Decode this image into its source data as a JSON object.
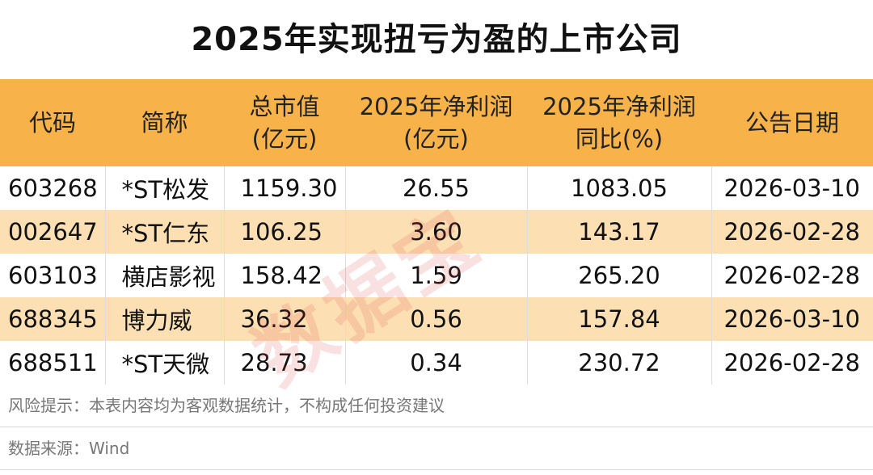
{
  "title": "2025年实现扭亏为盈的上市公司",
  "table": {
    "headers": [
      {
        "line1": "代码",
        "line2": ""
      },
      {
        "line1": "简称",
        "line2": ""
      },
      {
        "line1": "总市值",
        "line2": "(亿元)"
      },
      {
        "line1": "2025年净利润",
        "line2": "(亿元)"
      },
      {
        "line1": "2025年净利润",
        "line2": "同比(%)"
      },
      {
        "line1": "公告日期",
        "line2": ""
      }
    ],
    "rows": [
      {
        "code": "603268",
        "name": "*ST松发",
        "market_cap": "1159.30",
        "net_profit": "26.55",
        "yoy": "1083.05",
        "date": "2026-03-10"
      },
      {
        "code": "002647",
        "name": "*ST仁东",
        "market_cap": "106.25",
        "net_profit": "3.60",
        "yoy": "143.17",
        "date": "2026-02-28"
      },
      {
        "code": "603103",
        "name": "横店影视",
        "market_cap": "158.42",
        "net_profit": "1.59",
        "yoy": "265.20",
        "date": "2026-02-28"
      },
      {
        "code": "688345",
        "name": "博力威",
        "market_cap": "36.32",
        "net_profit": "0.56",
        "yoy": "157.84",
        "date": "2026-03-10"
      },
      {
        "code": "688511",
        "name": "*ST天微",
        "market_cap": "28.73",
        "net_profit": "0.34",
        "yoy": "230.72",
        "date": "2026-02-28"
      }
    ]
  },
  "risk_note": "风险提示：本表内容均为客观数据统计，不构成任何投资建议",
  "source": "数据来源：Wind",
  "watermark": "数据宝",
  "colors": {
    "header_bg": "#f7b34a",
    "alt_row_bg": "#fce0b3"
  }
}
